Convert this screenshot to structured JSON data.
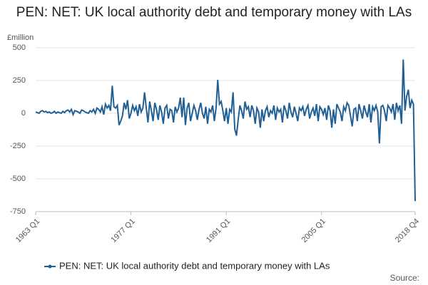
{
  "chart_data": {
    "type": "line",
    "title": "PEN: NET: UK local authority debt and temporary money with LAs",
    "y_label": "£million",
    "source": "Source:",
    "categories": [
      "1963 Q1",
      null,
      null,
      null,
      null,
      null,
      null,
      null,
      null,
      null,
      null,
      null,
      null,
      null,
      null,
      null,
      null,
      null,
      null,
      null,
      null,
      null,
      null,
      null,
      null,
      null,
      null,
      null,
      null,
      null,
      null,
      null,
      null,
      null,
      null,
      null,
      null,
      null,
      null,
      null,
      null,
      null,
      null,
      null,
      null,
      null,
      null,
      null,
      null,
      null,
      null,
      null,
      null,
      null,
      null,
      null,
      "1977 Q1",
      null,
      null,
      null,
      null,
      null,
      null,
      null,
      null,
      null,
      null,
      null,
      null,
      null,
      null,
      null,
      null,
      null,
      null,
      null,
      null,
      null,
      null,
      null,
      null,
      null,
      null,
      null,
      null,
      null,
      null,
      null,
      null,
      null,
      null,
      null,
      null,
      null,
      null,
      null,
      null,
      null,
      null,
      null,
      null,
      null,
      null,
      null,
      null,
      null,
      null,
      null,
      null,
      null,
      null,
      null,
      "1991 Q1",
      null,
      null,
      null,
      null,
      null,
      null,
      null,
      null,
      null,
      null,
      null,
      null,
      null,
      null,
      null,
      null,
      null,
      null,
      null,
      null,
      null,
      null,
      null,
      null,
      null,
      null,
      null,
      null,
      null,
      null,
      null,
      null,
      null,
      null,
      null,
      null,
      null,
      null,
      null,
      null,
      null,
      null,
      null,
      null,
      null,
      null,
      null,
      null,
      null,
      null,
      null,
      null,
      null,
      null,
      null,
      "2005 Q1",
      null,
      null,
      null,
      null,
      null,
      null,
      null,
      null,
      null,
      null,
      null,
      null,
      null,
      null,
      null,
      null,
      null,
      null,
      null,
      null,
      null,
      null,
      null,
      null,
      null,
      null,
      null,
      null,
      null,
      null,
      null,
      null,
      null,
      null,
      null,
      null,
      null,
      null,
      null,
      null,
      null,
      null,
      null,
      null,
      null,
      null,
      null,
      null,
      null,
      null,
      null,
      null,
      null,
      null,
      "2018 Q4"
    ],
    "series": [
      {
        "name": "PEN: NET: UK local authority debt and temporary money with LAs",
        "color": "#206095",
        "values": [
          10,
          5,
          0,
          15,
          20,
          10,
          15,
          5,
          10,
          0,
          5,
          15,
          0,
          10,
          5,
          0,
          15,
          5,
          20,
          25,
          10,
          30,
          -10,
          20,
          15,
          10,
          0,
          25,
          20,
          10,
          5,
          0,
          20,
          10,
          30,
          0,
          40,
          30,
          10,
          50,
          -10,
          70,
          40,
          60,
          20,
          210,
          50,
          40,
          60,
          -90,
          -60,
          -20,
          80,
          30,
          100,
          -40,
          0,
          60,
          20,
          50,
          -20,
          70,
          10,
          40,
          160,
          40,
          -70,
          90,
          20,
          -60,
          80,
          30,
          -50,
          60,
          10,
          -80,
          40,
          60,
          -40,
          30,
          20,
          -70,
          50,
          10,
          40,
          120,
          -30,
          120,
          -90,
          40,
          80,
          -60,
          0,
          60,
          20,
          -50,
          30,
          80,
          0,
          -40,
          50,
          -80,
          30,
          10,
          60,
          -60,
          40,
          255,
          70,
          90,
          20,
          -60,
          40,
          -80,
          30,
          10,
          160,
          -120,
          -170,
          -50,
          60,
          20,
          -40,
          90,
          30,
          50,
          -30,
          60,
          20,
          -80,
          40,
          10,
          -110,
          30,
          -60,
          20,
          50,
          -30,
          20,
          0,
          60,
          -50,
          40,
          10,
          30,
          -70,
          60,
          20,
          -40,
          80,
          10,
          -30,
          50,
          0,
          -60,
          40,
          20,
          50,
          -20,
          30,
          60,
          -40,
          10,
          40,
          -20,
          70,
          -60,
          50,
          30,
          -10,
          40,
          -50,
          60,
          20,
          -110,
          30,
          -80,
          70,
          40,
          10,
          -60,
          50,
          20,
          80,
          60,
          -20,
          -100,
          30,
          40,
          -60,
          70,
          20,
          -40,
          60,
          10,
          -30,
          70,
          -70,
          50,
          20,
          60,
          10,
          -230,
          50,
          60,
          20,
          -60,
          60,
          40,
          10,
          70,
          -50,
          80,
          20,
          60,
          -80,
          410,
          20,
          130,
          180,
          40,
          100,
          70,
          -670
        ]
      }
    ],
    "ylim": [
      -750,
      500
    ],
    "yticks": [
      -750,
      -500,
      -250,
      0,
      250,
      500
    ],
    "grid": true
  }
}
